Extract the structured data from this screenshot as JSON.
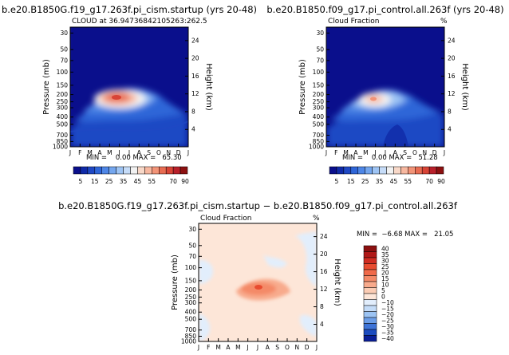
{
  "chart_data": [
    {
      "type": "contour",
      "title": "b.e20.B1850G.f19_g17.263f.pi_cism.startup (yrs 20-48)",
      "subtitle": "CLOUD at 36.94736842105263:262.5",
      "ylabel": "Pressure (mb)",
      "y2label": "Height (km)",
      "min_max_text": "MIN =    0.00 MAX =   65.30",
      "min": 0.0,
      "max": 65.3,
      "months": [
        "J",
        "F",
        "M",
        "A",
        "M",
        "J",
        "J",
        "A",
        "S",
        "O",
        "N",
        "D",
        "J"
      ],
      "pressure_ticks": [
        "30",
        "50",
        "70",
        "100",
        "150",
        "200",
        "250",
        "300",
        "400",
        "500",
        "700",
        "850",
        "1000"
      ],
      "height_ticks": [
        "24",
        "20",
        "16",
        "12",
        "8",
        "4"
      ],
      "colorbar": {
        "orientation": "horizontal",
        "labels": [
          "5",
          "15",
          "25",
          "35",
          "45",
          "55",
          "70",
          "90"
        ],
        "levels": [
          0,
          5,
          10,
          15,
          20,
          25,
          30,
          35,
          40,
          45,
          50,
          55,
          60,
          70,
          80,
          90
        ],
        "colors": [
          "#0a0f8c",
          "#102aa8",
          "#1f48c4",
          "#2f66d8",
          "#4e86e6",
          "#74a6ee",
          "#9ec4f4",
          "#c6dcf8",
          "#f2f2f2",
          "#f8d8c8",
          "#f7b8a0",
          "#f29478",
          "#e86c52",
          "#d84436",
          "#b8202a",
          "#8c1010"
        ]
      }
    },
    {
      "type": "contour",
      "title": "b.e20.B1850.f09_g17.pi_control.all.263f (yrs 20-48)",
      "subtitle": "Cloud Fraction",
      "unit": "%",
      "ylabel": "Pressure (mb)",
      "y2label": "Height (km)",
      "min_max_text": "MIN =    0.00 MAX =   51.28",
      "min": 0.0,
      "max": 51.28,
      "months": [
        "J",
        "F",
        "M",
        "A",
        "M",
        "J",
        "J",
        "A",
        "S",
        "O",
        "N",
        "D",
        "J"
      ],
      "pressure_ticks": [
        "30",
        "50",
        "70",
        "100",
        "150",
        "200",
        "250",
        "300",
        "400",
        "500",
        "700",
        "850",
        "1000"
      ],
      "height_ticks": [
        "24",
        "20",
        "16",
        "12",
        "8",
        "4"
      ],
      "colorbar": {
        "orientation": "horizontal",
        "labels": [
          "5",
          "15",
          "25",
          "35",
          "45",
          "55",
          "70",
          "90"
        ],
        "levels": [
          0,
          5,
          10,
          15,
          20,
          25,
          30,
          35,
          40,
          45,
          50,
          55,
          60,
          70,
          80,
          90
        ],
        "colors": [
          "#0a0f8c",
          "#102aa8",
          "#1f48c4",
          "#2f66d8",
          "#4e86e6",
          "#74a6ee",
          "#9ec4f4",
          "#c6dcf8",
          "#f2f2f2",
          "#f8d8c8",
          "#f7b8a0",
          "#f29478",
          "#e86c52",
          "#d84436",
          "#b8202a",
          "#8c1010"
        ]
      }
    },
    {
      "type": "contour",
      "title": "b.e20.B1850G.f19_g17.263f.pi_cism.startup − b.e20.B1850.f09_g17.pi_control.all.263f",
      "subtitle": "Cloud Fraction",
      "unit": "%",
      "ylabel": "Pressure (mb)",
      "y2label": "Height (km)",
      "min_max_text": "MIN =  −6.68 MAX =   21.05",
      "min": -6.68,
      "max": 21.05,
      "months": [
        "J",
        "F",
        "M",
        "A",
        "M",
        "J",
        "J",
        "A",
        "S",
        "O",
        "N",
        "D",
        "J"
      ],
      "pressure_ticks": [
        "30",
        "50",
        "70",
        "100",
        "150",
        "200",
        "250",
        "300",
        "400",
        "500",
        "700",
        "850",
        "1000"
      ],
      "height_ticks": [
        "24",
        "20",
        "16",
        "12",
        "8",
        "4"
      ],
      "colorbar": {
        "orientation": "vertical",
        "labels": [
          "40",
          "35",
          "30",
          "25",
          "20",
          "15",
          "10",
          "5",
          "0",
          "−10",
          "−15",
          "−20",
          "−25",
          "−30",
          "−35",
          "−40"
        ],
        "colors": [
          "#8c1010",
          "#b01818",
          "#d02c22",
          "#e84c30",
          "#f06a4a",
          "#f48a68",
          "#f8aa8c",
          "#fbccb4",
          "#fde6d8",
          "#e2eefc",
          "#c4dcf8",
          "#9cc4f4",
          "#6c9ee8",
          "#3e74d8",
          "#1c4cc0",
          "#0a1f98"
        ]
      }
    }
  ]
}
